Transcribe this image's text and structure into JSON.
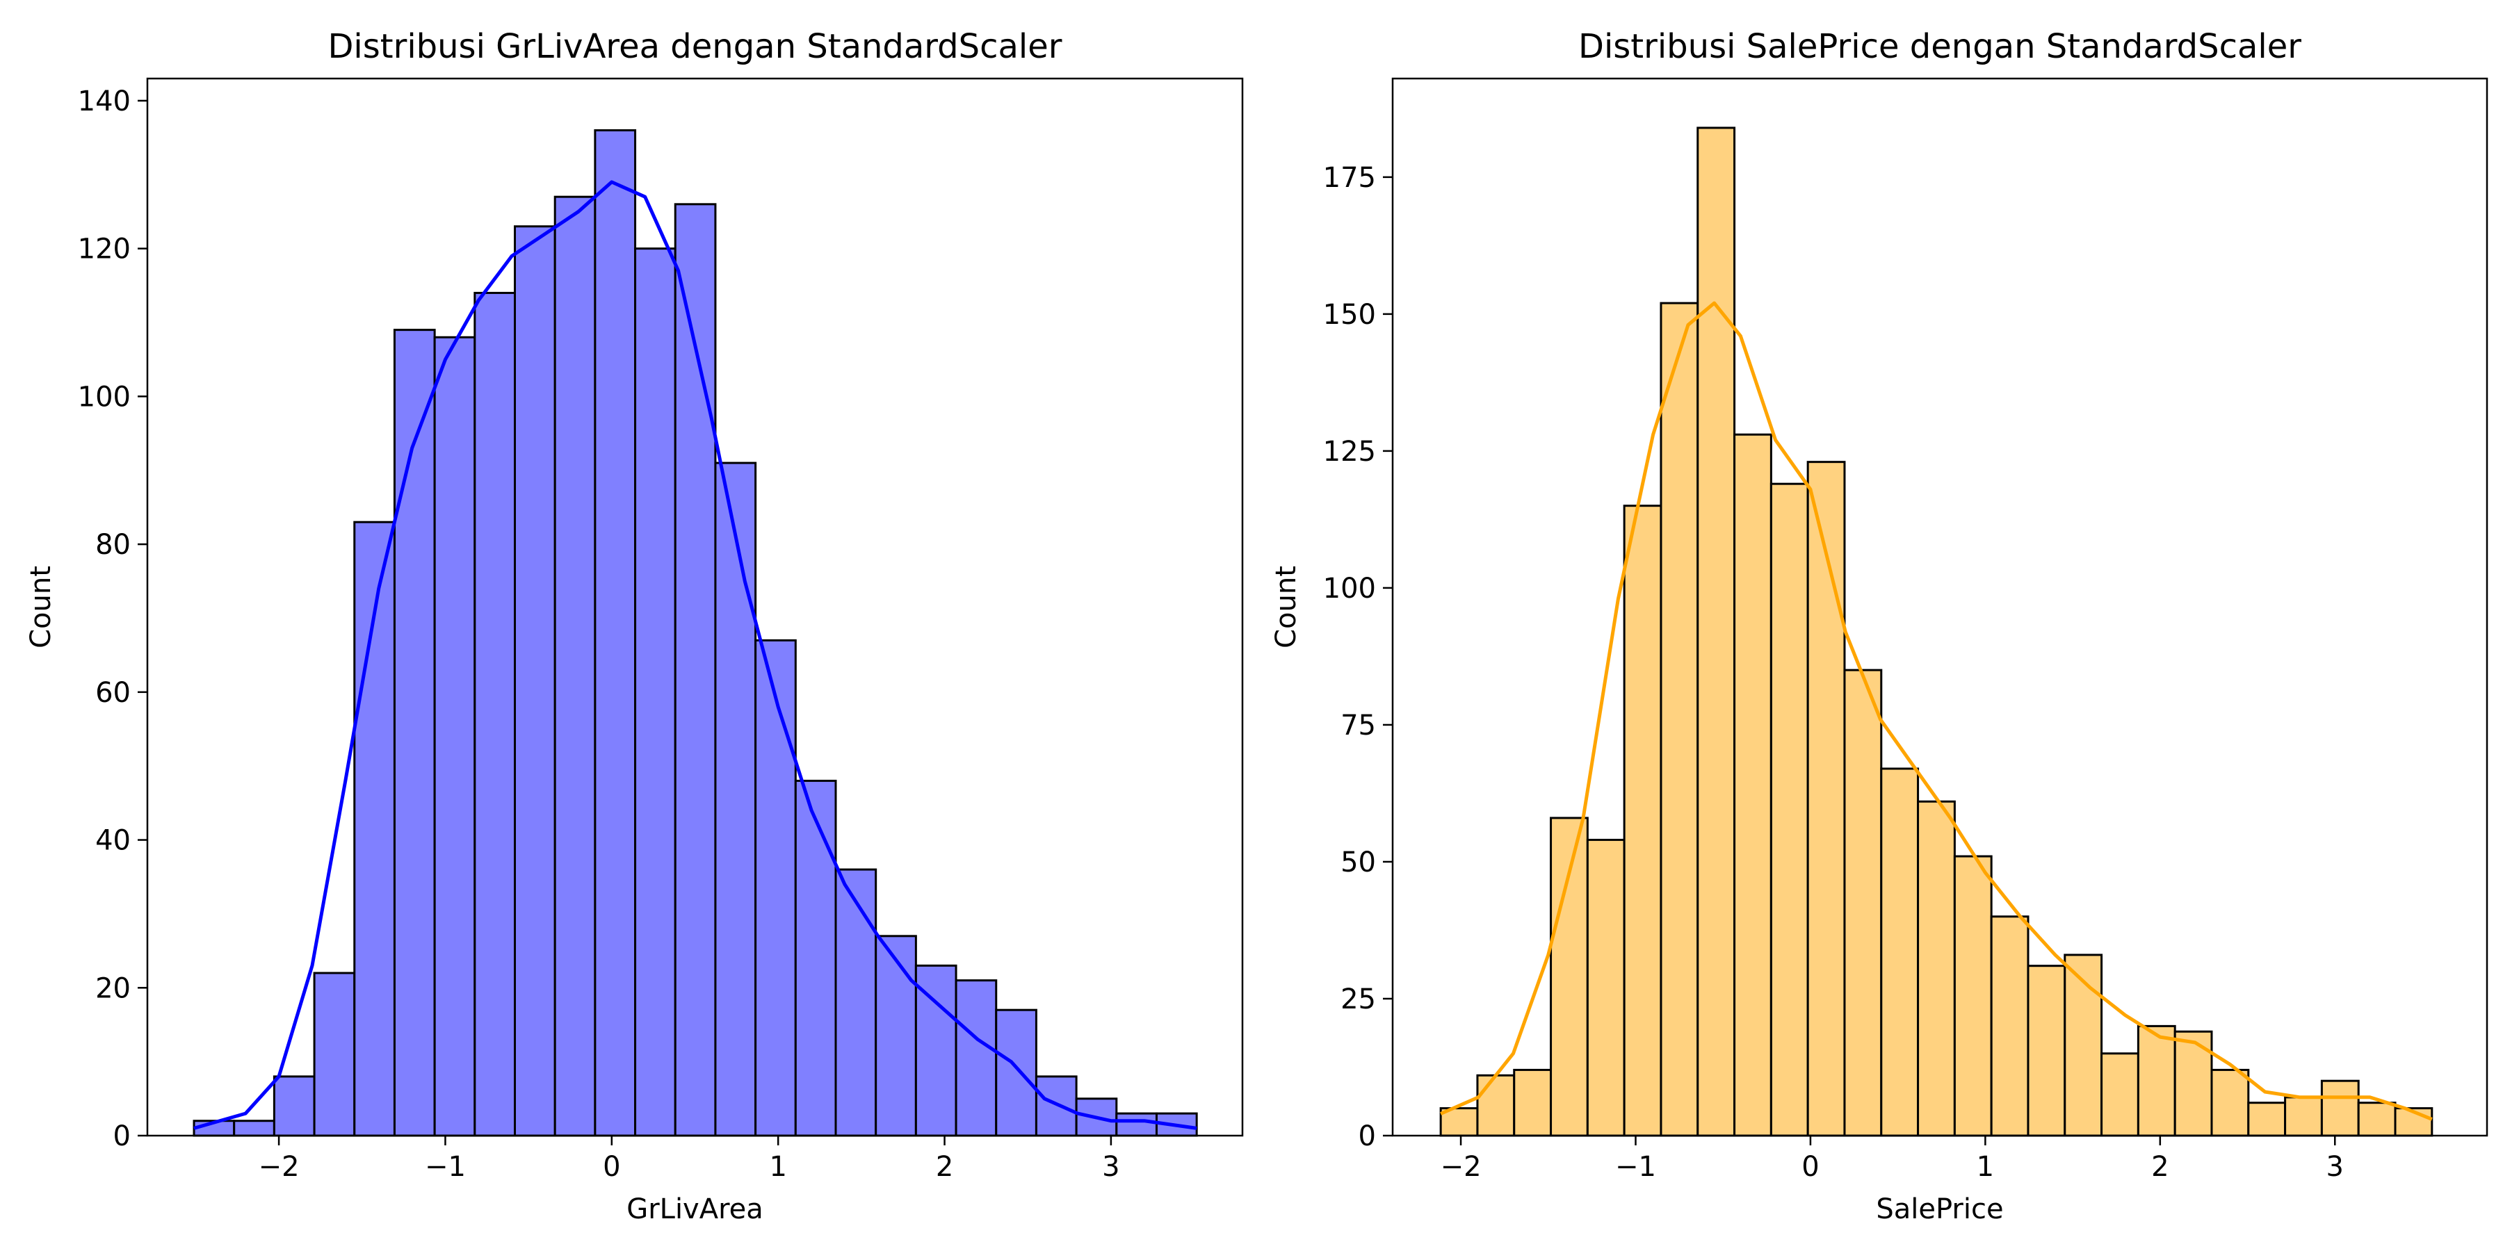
{
  "chart_data": [
    {
      "type": "histogram",
      "title": "Distribusi GrLivArea dengan StandardScaler",
      "xlabel": "GrLivArea",
      "ylabel": "Count",
      "xlim": [
        -2.79,
        3.79
      ],
      "ylim": [
        0,
        143
      ],
      "x_ticks": [
        -2,
        -1,
        0,
        1,
        2,
        3
      ],
      "x_tick_labels": [
        "−2",
        "−1",
        "0",
        "1",
        "2",
        "3"
      ],
      "y_ticks": [
        0,
        20,
        40,
        60,
        80,
        100,
        120,
        140
      ],
      "y_tick_labels": [
        "0",
        "20",
        "40",
        "60",
        "80",
        "100",
        "120",
        "140"
      ],
      "bar_color": "#8080ff",
      "edge_color": "#000000",
      "kde_color": "#0000ff",
      "bin_edges": [
        -2.51,
        -2.269,
        -2.028,
        -1.787,
        -1.546,
        -1.305,
        -1.064,
        -0.823,
        -0.582,
        -0.341,
        -0.1,
        0.141,
        0.382,
        0.623,
        0.864,
        1.105,
        1.346,
        1.587,
        1.828,
        2.069,
        2.31,
        2.551,
        2.792,
        3.033,
        3.274,
        3.515
      ],
      "counts": [
        2,
        2,
        8,
        22,
        83,
        109,
        108,
        114,
        123,
        127,
        136,
        120,
        126,
        91,
        67,
        48,
        36,
        27,
        23,
        21,
        17,
        8,
        5,
        3,
        3
      ],
      "kde": {
        "x": [
          -2.51,
          -2.2,
          -2.0,
          -1.8,
          -1.6,
          -1.4,
          -1.2,
          -1.0,
          -0.8,
          -0.6,
          -0.4,
          -0.2,
          0.0,
          0.2,
          0.4,
          0.6,
          0.8,
          1.0,
          1.2,
          1.4,
          1.6,
          1.8,
          2.0,
          2.2,
          2.4,
          2.6,
          2.8,
          3.0,
          3.2,
          3.515
        ],
        "y": [
          1,
          3,
          8,
          23,
          48,
          74,
          93,
          105,
          113,
          119,
          122,
          125,
          129,
          127,
          117,
          97,
          75,
          58,
          44,
          34,
          27,
          21,
          17,
          13,
          10,
          5,
          3,
          2,
          2,
          1
        ]
      }
    },
    {
      "type": "histogram",
      "title": "Distribusi SalePrice dengan StandardScaler",
      "xlabel": "SalePrice",
      "ylabel": "Count",
      "xlim": [
        -2.39,
        3.87
      ],
      "ylim": [
        0,
        193
      ],
      "x_ticks": [
        -2,
        -1,
        0,
        1,
        2,
        3
      ],
      "x_tick_labels": [
        "−2",
        "−1",
        "0",
        "1",
        "2",
        "3"
      ],
      "y_ticks": [
        0,
        25,
        50,
        75,
        100,
        125,
        150,
        175
      ],
      "y_tick_labels": [
        "0",
        "25",
        "50",
        "75",
        "100",
        "125",
        "150",
        "175"
      ],
      "bar_color": "#ffd280",
      "edge_color": "#000000",
      "kde_color": "#ffa500",
      "bin_edges": [
        -2.115,
        -1.905,
        -1.695,
        -1.485,
        -1.275,
        -1.065,
        -0.855,
        -0.645,
        -0.435,
        -0.225,
        -0.015,
        0.195,
        0.405,
        0.615,
        0.825,
        1.035,
        1.245,
        1.455,
        1.665,
        1.875,
        2.085,
        2.295,
        2.505,
        2.715,
        2.925,
        3.135,
        3.345,
        3.555
      ],
      "counts": [
        5,
        11,
        12,
        58,
        54,
        115,
        152,
        184,
        128,
        119,
        123,
        85,
        67,
        61,
        51,
        40,
        31,
        33,
        15,
        20,
        19,
        12,
        6,
        7,
        10,
        6,
        5
      ],
      "kde": {
        "x": [
          -2.115,
          -1.9,
          -1.7,
          -1.5,
          -1.3,
          -1.1,
          -0.9,
          -0.7,
          -0.55,
          -0.4,
          -0.2,
          0.0,
          0.2,
          0.4,
          0.6,
          0.8,
          1.0,
          1.2,
          1.4,
          1.6,
          1.8,
          2.0,
          2.2,
          2.4,
          2.6,
          2.8,
          3.0,
          3.2,
          3.4,
          3.555
        ],
        "y": [
          4,
          7,
          15,
          33,
          58,
          98,
          128,
          148,
          152,
          146,
          127,
          118,
          92,
          76,
          67,
          58,
          48,
          40,
          33,
          27,
          22,
          18,
          17,
          13,
          8,
          7,
          7,
          7,
          5,
          3
        ]
      }
    }
  ]
}
